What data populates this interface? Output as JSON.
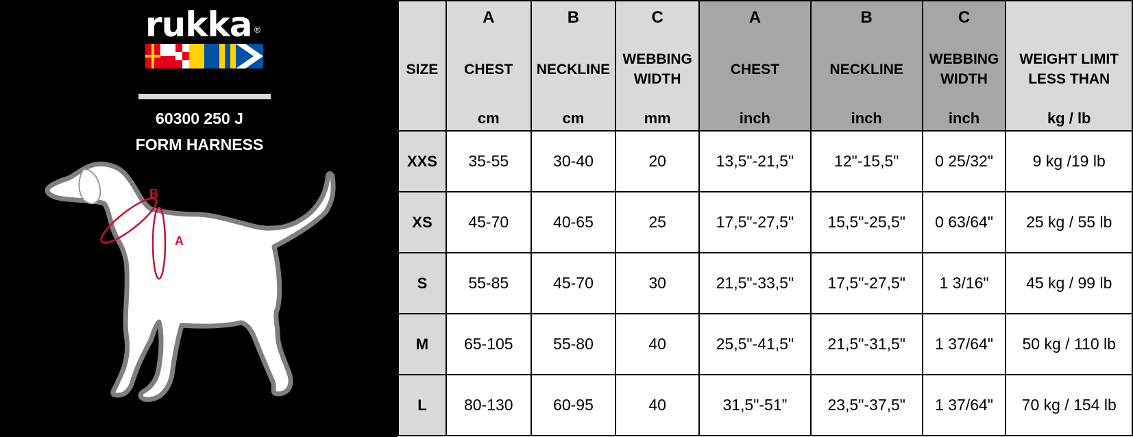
{
  "brand": {
    "name": "rukka",
    "registered": "®"
  },
  "product": {
    "code": "60300 250 J",
    "name": "FORM HARNESS"
  },
  "diagram": {
    "label_a": "A",
    "label_b": "B"
  },
  "colors": {
    "accent_red": "#c8102e",
    "header_light": "#d9d9d9",
    "header_dark": "#a6a6a6"
  },
  "table": {
    "size_header": "SIZE",
    "columns": [
      {
        "letter": "A",
        "name": "CHEST",
        "unit": "cm",
        "shade": "light"
      },
      {
        "letter": "B",
        "name": "NECKLINE",
        "unit": "cm",
        "shade": "light"
      },
      {
        "letter": "C",
        "name": "WEBBING WIDTH",
        "unit": "mm",
        "shade": "light"
      },
      {
        "letter": "A",
        "name": "CHEST",
        "unit": "inch",
        "shade": "dark"
      },
      {
        "letter": "B",
        "name": "NECKLINE",
        "unit": "inch",
        "shade": "dark"
      },
      {
        "letter": "C",
        "name": "WEBBING WIDTH",
        "unit": "inch",
        "shade": "dark"
      },
      {
        "letter": "",
        "name": "WEIGHT LIMIT LESS THAN",
        "unit": "kg / lb",
        "shade": "plain"
      }
    ],
    "rows": [
      {
        "size": "XXS",
        "cells": [
          "35-55",
          "30-40",
          "20",
          "13,5\"-21,5\"",
          "12\"-15,5\"",
          "0 25/32\"",
          "9 kg /19 lb"
        ]
      },
      {
        "size": "XS",
        "cells": [
          "45-70",
          "40-65",
          "25",
          "17,5\"-27,5\"",
          "15,5\"-25,5\"",
          "0 63/64\"",
          "25 kg / 55 lb"
        ]
      },
      {
        "size": "S",
        "cells": [
          "55-85",
          "45-70",
          "30",
          "21,5\"-33,5\"",
          "17,5\"-27,5\"",
          "1 3/16\"",
          "45 kg / 99 lb"
        ]
      },
      {
        "size": "M",
        "cells": [
          "65-105",
          "55-80",
          "40",
          "25,5\"-41,5\"",
          "21,5\"-31,5\"",
          "1 37/64\"",
          "50 kg / 110 lb"
        ]
      },
      {
        "size": "L",
        "cells": [
          "80-130",
          "60-95",
          "40",
          "31,5\"-51”",
          "23,5\"-37,5\"",
          "1 37/64\"",
          "70 kg / 154 lb"
        ]
      }
    ]
  }
}
